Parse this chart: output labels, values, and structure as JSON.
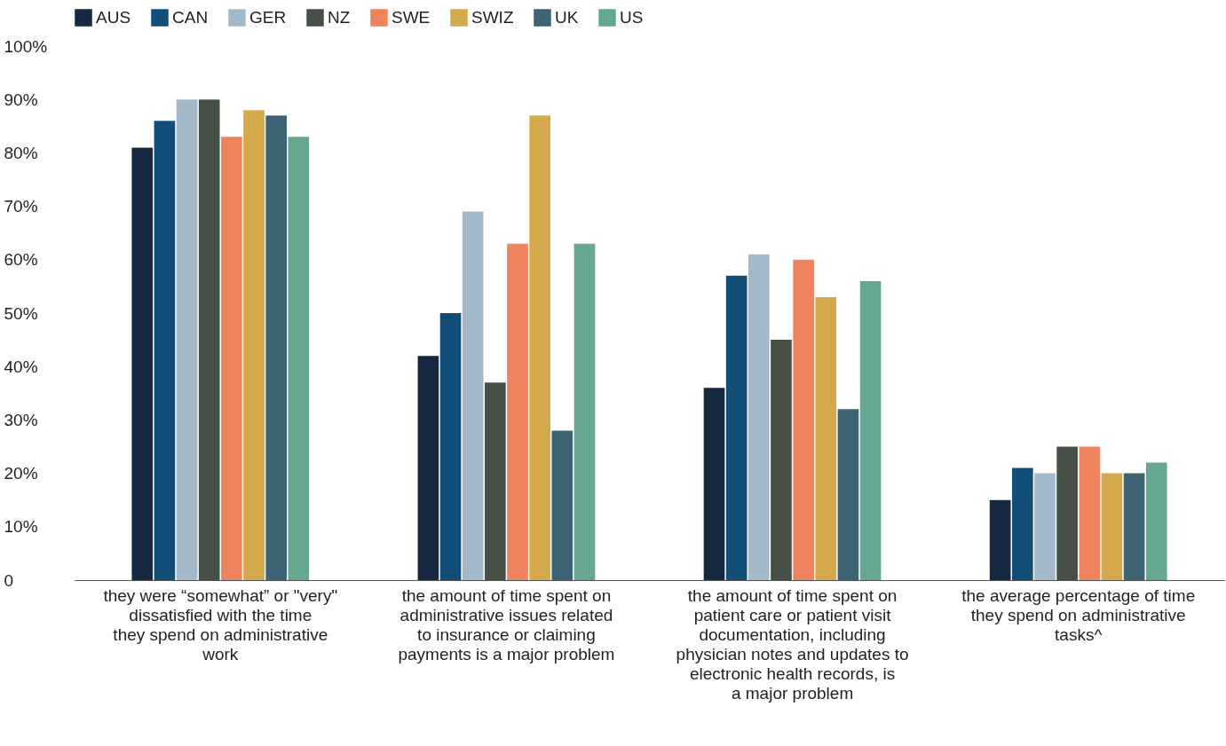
{
  "chart_data": {
    "type": "bar",
    "categories": [
      "they were “somewhat” or \"very\" dissatisfied with the time they spend on administrative work",
      "the amount of time spent on administrative issues related to insurance or claiming payments is a major problem",
      "the amount of time spent on patient care or patient visit documentation, including physician notes and updates to electronic health records, is a major problem",
      "the average percentage of time they spend on administrative tasks^"
    ],
    "series": [
      {
        "name": "AUS",
        "color": "#16283f",
        "values": [
          81,
          42,
          36,
          15
        ]
      },
      {
        "name": "CAN",
        "color": "#114f78",
        "values": [
          86,
          50,
          57,
          21
        ]
      },
      {
        "name": "GER",
        "color": "#a3b9c9",
        "values": [
          90,
          69,
          61,
          20
        ]
      },
      {
        "name": "NZ",
        "color": "#465046",
        "values": [
          90,
          37,
          45,
          25
        ]
      },
      {
        "name": "SWE",
        "color": "#ef8360",
        "values": [
          83,
          63,
          60,
          25
        ]
      },
      {
        "name": "SWIZ",
        "color": "#d3a94b",
        "values": [
          88,
          87,
          53,
          20
        ]
      },
      {
        "name": "UK",
        "color": "#3e6373",
        "values": [
          87,
          28,
          32,
          20
        ]
      },
      {
        "name": "US",
        "color": "#66a790",
        "values": [
          83,
          63,
          56,
          22
        ]
      }
    ],
    "ylim": [
      0,
      100
    ],
    "yticks": [
      0,
      {
        "value": 10,
        "label": "10%"
      },
      {
        "value": 20,
        "label": "20%"
      },
      {
        "value": 30,
        "label": "30%"
      },
      {
        "value": 40,
        "label": "40%"
      },
      {
        "value": 50,
        "label": "50%"
      },
      {
        "value": 60,
        "label": "60%"
      },
      {
        "value": 70,
        "label": "70%"
      },
      {
        "value": 80,
        "label": "80%"
      },
      {
        "value": 90,
        "label": "90%"
      },
      {
        "value": 100,
        "label": "100%"
      }
    ],
    "grid": false,
    "legend": "top"
  }
}
